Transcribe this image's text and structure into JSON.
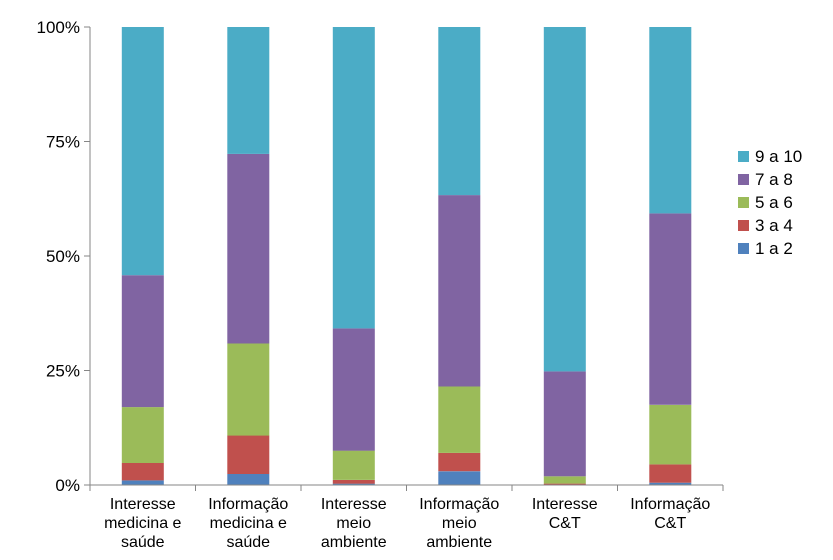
{
  "chart_data": {
    "type": "bar",
    "stacked": true,
    "percent_stacked": true,
    "categories": [
      [
        "Interesse",
        "medicina e",
        "saúde"
      ],
      [
        "Informação",
        "medicina e",
        "saúde"
      ],
      [
        "Interesse",
        "meio",
        "ambiente"
      ],
      [
        "Informação",
        "meio",
        "ambiente"
      ],
      [
        "Interesse",
        "C&T"
      ],
      [
        "Informação",
        "C&T"
      ]
    ],
    "series": [
      {
        "name": "1 a 2",
        "color": "#4F81BD",
        "values": [
          1.0,
          2.4,
          0.3,
          3.0,
          0.1,
          0.5
        ]
      },
      {
        "name": "3 a 4",
        "color": "#C0504D",
        "values": [
          3.8,
          8.4,
          0.8,
          4.0,
          0.2,
          4.0
        ]
      },
      {
        "name": "5 a 6",
        "color": "#9BBB59",
        "values": [
          12.2,
          20.1,
          6.4,
          14.5,
          1.6,
          13.0
        ]
      },
      {
        "name": "7 a 8",
        "color": "#8064A2",
        "values": [
          28.8,
          41.4,
          26.7,
          41.8,
          22.9,
          41.8
        ]
      },
      {
        "name": "9 a 10",
        "color": "#4BACC6",
        "values": [
          54.2,
          27.7,
          65.8,
          36.7,
          75.2,
          40.7
        ]
      }
    ],
    "yticks": [
      "0%",
      "25%",
      "50%",
      "75%",
      "100%"
    ],
    "ylim": [
      0,
      100
    ],
    "legend_position": "right",
    "grid": false
  }
}
